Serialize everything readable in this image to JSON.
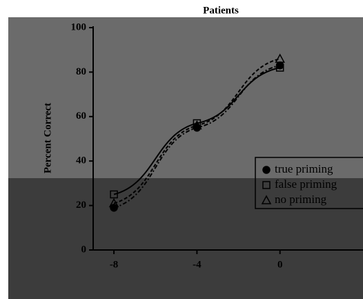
{
  "chart_data": {
    "type": "line",
    "title": "Patients",
    "y_label": "Percent Correct",
    "x": [
      -8,
      -4,
      0
    ],
    "series": [
      {
        "name": "true priming",
        "color": "#000000",
        "marker": "circle",
        "dash": "6,3,2,3",
        "values": [
          19,
          55,
          83
        ]
      },
      {
        "name": "false priming",
        "color": "#000000",
        "marker": "square",
        "dash": "none",
        "values": [
          25,
          57,
          82
        ]
      },
      {
        "name": "no priming",
        "color": "#000000",
        "marker": "triangle",
        "dash": "5,3",
        "values": [
          21,
          56,
          86
        ]
      }
    ],
    "xlim": [
      -9,
      4
    ],
    "xticks": [
      -8,
      -4,
      0
    ],
    "ylim": [
      0,
      100
    ],
    "yticks": [
      0,
      20,
      40,
      60,
      80,
      100
    ]
  }
}
